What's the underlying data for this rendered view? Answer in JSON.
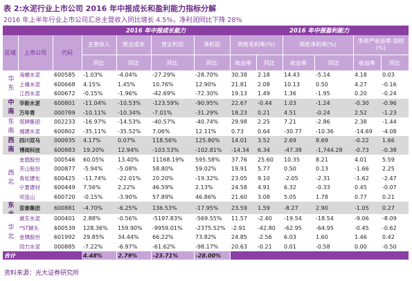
{
  "header": {
    "title": "表 2:水泥行业上市公司 2016 年中报成长和盈利能力指标分解",
    "subtitle": "2016 年上半年行业上市公司汇总主营收入同比增长 4.5%，净利润同比下降 28%"
  },
  "table": {
    "group_headers": [
      "2016 年中报成长能力",
      "2016 年中报盈利能力"
    ],
    "columns": [
      "区域",
      "上市公司",
      "代码",
      "主营收入",
      "营业成本",
      "营业利润",
      "净利润",
      "销售毛利率(%)",
      "销售净利率(%)",
      "净资产收益率-加权(%)"
    ],
    "sub_columns": [
      "同比",
      "同比",
      "同比",
      "同比",
      "收益率",
      "同比",
      "收益率",
      "同比",
      "收益率",
      "同比"
    ],
    "regions": [
      {
        "name": "华东",
        "rows": [
          [
            "海螺水泥",
            "600585",
            "-1.03%",
            "-4.04%",
            "-27.29%",
            "-28.70%",
            "30.38",
            "2.18",
            "14.43",
            "-5.14",
            "4.18",
            "0.03"
          ],
          [
            "上峰水泥",
            "600668",
            "4.15%",
            "1.45%",
            "10.76%",
            "12.90%",
            "21.81",
            "2.08",
            "10.13",
            "0.50",
            "4.27",
            "-0.16"
          ],
          [
            "江西水泥",
            "600672",
            "-0.15%",
            "-1.96%",
            "-42.69%",
            "-72.30%",
            "19.13",
            "1.49",
            "1.36",
            "-1.95",
            "0.20",
            "-0.24"
          ]
        ]
      },
      {
        "name": "中南",
        "rows": [
          [
            "华新水泥",
            "600801",
            "-11.04%",
            "-10.53%",
            "-123.59%",
            "-90.95%",
            "22.67",
            "-0.44",
            "1.03",
            "-1.24",
            "-0.30",
            "-0.96"
          ],
          [
            "万年青",
            "000789",
            "-10.11%",
            "-10.34%",
            "-7.01%",
            "-31.29%",
            "18.23",
            "0.21",
            "4.51",
            "-0.24",
            "2.52",
            "-1.23"
          ]
        ]
      },
      {
        "name": "东南",
        "rows": [
          [
            "塔牌集团",
            "002233",
            "-16.97%",
            "-14.53%",
            "-40.57%",
            "-40.74%",
            "29.98",
            "2.25",
            "7.21",
            "-2.86",
            "2.38",
            "-1.44"
          ],
          [
            "福建水泥",
            "600802",
            "-35.11%",
            "-35.52%",
            "7.06%",
            "12.11%",
            "0.73",
            "0.64",
            "-30.77",
            "-10.36",
            "-14.69",
            "-4.08"
          ]
        ]
      },
      {
        "name": "西南",
        "rows": [
          [
            "四川双马",
            "000935",
            "4.17%",
            "0.07%",
            "118.56%",
            "125.80%",
            "14.01",
            "3.52",
            "2.69",
            "8.69",
            "-0.22",
            "1.66"
          ],
          [
            "博闻科技",
            "600883",
            "19.20%",
            "12.94%",
            "-103.53%",
            "-102.81%",
            "-14.34",
            "6.34",
            "-47.38",
            "-1,744.28",
            "-0.73",
            "-0.38"
          ]
        ]
      },
      {
        "name": "西北",
        "rows": [
          [
            "金圆股份",
            "000546",
            "60.05%",
            "13.40%",
            "11168.19%",
            "595.58%",
            "37.76",
            "25.60",
            "10.35",
            "8.21",
            "4.01",
            "5.59"
          ],
          [
            "天山股份",
            "000877",
            "-5.94%",
            "-5.08%",
            "58.80%",
            "59.02%",
            "19.91",
            "5.77",
            "0.50",
            "0.13",
            "-1.66",
            "2.25"
          ],
          [
            "青松建化",
            "600425",
            "-11.74%",
            "-22.01%",
            "20.20%",
            "-19.32%",
            "23.05",
            "9.10",
            "-2.05",
            "-2.31",
            "-1.62",
            "-2.47"
          ],
          [
            "宁夏建材",
            "600449",
            "7.56%",
            "2.22%",
            "46.59%",
            "2.13%",
            "24.58",
            "4.91",
            "6.32",
            "-0.33",
            "0.45",
            "-0.07"
          ],
          [
            "祁连山",
            "600720",
            "-0.15%",
            "-3.90%",
            "57.89%",
            "46.86%",
            "21.60",
            "3.08",
            "5.05",
            "1.78",
            "0.77",
            "0.21"
          ]
        ]
      },
      {
        "name": "东北",
        "rows": [
          [
            "亚泰集团",
            "600881",
            "-4.70%",
            "-6.25%",
            "136.53%",
            "-17.95%",
            "23.59",
            "1.59",
            "-8.27",
            "2.90",
            "-1.05",
            "0.27"
          ]
        ]
      },
      {
        "name": "华北",
        "rows": [
          [
            "冀东水泥",
            "000401",
            "2.88%",
            "-0.56%",
            "-5197.83%",
            "-569.55%",
            "11.57",
            "-2.40",
            "-19.54",
            "-18.54",
            "-9.06",
            "-8.09"
          ],
          [
            "*ST狮头",
            "600539",
            "128.36%",
            "159.90%",
            "-9959.01%",
            "-2375.52%",
            "-2.91",
            "-42.80",
            "-62.95",
            "-64.95",
            "-0.45",
            "-0.62"
          ],
          [
            "金隅股份",
            "601992",
            "29.85%",
            "34.44%",
            "66.22%",
            "73.82%",
            "24.85",
            "-2.56",
            "6.03",
            "1.60",
            "1.46",
            "0.42"
          ],
          [
            "同力水泥",
            "000885",
            "-7.22%",
            "-6.97%",
            "-61.62%",
            "-98.17%",
            "20.63",
            "-0.21",
            "0.01",
            "-0.58",
            "0.00",
            "-0.50"
          ]
        ]
      }
    ],
    "total": {
      "label": "合计",
      "values": [
        "4.48%",
        "2.79%",
        "-23.71%",
        "-28.00%"
      ]
    }
  },
  "source": "资料来源：光大证券研究所"
}
